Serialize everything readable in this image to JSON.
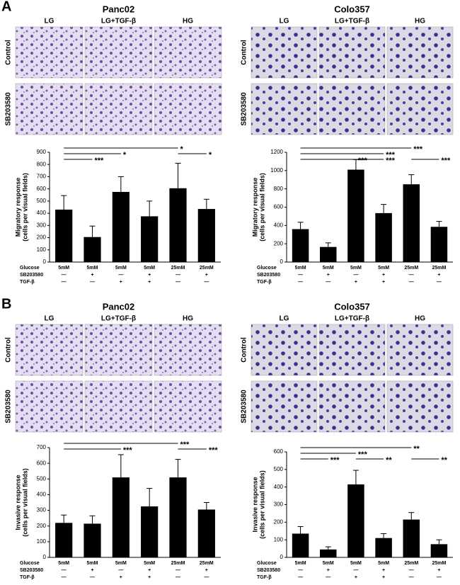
{
  "panel_labels": [
    "A",
    "B"
  ],
  "image_grid": {
    "columns": [
      "LG",
      "LG+TGF-β",
      "HG"
    ],
    "rows": [
      "Control",
      "SB203580"
    ]
  },
  "chart_data": [
    {
      "type": "bar",
      "title": "Panc02",
      "y_label": [
        "Migratory response",
        "(cells per visual fields)"
      ],
      "category_label": "Glucose",
      "categories": [
        "5mM",
        "5mM",
        "5mM",
        "5mM",
        "25mM",
        "25mM"
      ],
      "conditions": [
        {
          "name": "SB203580",
          "values": [
            "—",
            "+",
            "—",
            "+",
            "—",
            "+"
          ]
        },
        {
          "name": "TGF-β",
          "values": [
            "—",
            "—",
            "+",
            "+",
            "—",
            "—"
          ]
        }
      ],
      "values": [
        430,
        205,
        575,
        375,
        605,
        435
      ],
      "errors": [
        115,
        90,
        125,
        125,
        205,
        80
      ],
      "color": "#000000",
      "ylim": [
        0,
        900
      ],
      "yticks": [
        0,
        100,
        200,
        300,
        400,
        500,
        600,
        700,
        800,
        900
      ],
      "annotations": [
        "*",
        "*",
        "***",
        "*"
      ]
    },
    {
      "type": "bar",
      "title": "Colo357",
      "y_label": [
        "Migratory response",
        "(cells per visual fields)"
      ],
      "category_label": "Glucose",
      "categories": [
        "5mM",
        "5mM",
        "5mM",
        "5mM",
        "25mM",
        "25mM"
      ],
      "conditions": [
        {
          "name": "SB203580",
          "values": [
            "—",
            "+",
            "—",
            "+",
            "—",
            "+"
          ]
        },
        {
          "name": "TGF-β",
          "values": [
            "—",
            "—",
            "+",
            "+",
            "—",
            "—"
          ]
        }
      ],
      "values": [
        360,
        165,
        1010,
        535,
        850,
        385
      ],
      "errors": [
        75,
        45,
        110,
        95,
        105,
        60
      ],
      "color": "#000000",
      "ylim": [
        0,
        1200
      ],
      "yticks": [
        0,
        200,
        400,
        600,
        800,
        1000,
        1200
      ],
      "annotations": [
        "***",
        "***",
        "***",
        "***",
        "***"
      ]
    },
    {
      "type": "bar",
      "title": "Panc02",
      "y_label": [
        "Invasive response",
        "(cells per visual fields)"
      ],
      "category_label": "Glucose",
      "categories": [
        "5mM",
        "5mM",
        "5mM",
        "5mM",
        "25mM",
        "25mM"
      ],
      "conditions": [
        {
          "name": "SB203580",
          "values": [
            "—",
            "+",
            "—",
            "+",
            "—",
            "+"
          ]
        },
        {
          "name": "TGF-β",
          "values": [
            "—",
            "—",
            "+",
            "+",
            "—",
            "—"
          ]
        }
      ],
      "values": [
        220,
        215,
        510,
        325,
        510,
        305
      ],
      "errors": [
        50,
        50,
        145,
        115,
        115,
        45
      ],
      "color": "#000000",
      "ylim": [
        0,
        700
      ],
      "yticks": [
        0,
        100,
        200,
        300,
        400,
        500,
        600,
        700
      ],
      "annotations": [
        "***",
        "***",
        "***"
      ]
    },
    {
      "type": "bar",
      "title": "Colo357",
      "y_label": [
        "Invasive response",
        "(cells per visual fields)"
      ],
      "category_label": "Glucose",
      "categories": [
        "5mM",
        "5mM",
        "5mM",
        "5mM",
        "25mM",
        "25mM"
      ],
      "conditions": [
        {
          "name": "SB203580",
          "values": [
            "—",
            "+",
            "—",
            "+",
            "—",
            "+"
          ]
        },
        {
          "name": "TGF-β",
          "values": [
            "—",
            "—",
            "+",
            "+",
            "—",
            "—"
          ]
        }
      ],
      "values": [
        135,
        45,
        415,
        110,
        215,
        75
      ],
      "errors": [
        40,
        15,
        80,
        25,
        40,
        25
      ],
      "color": "#000000",
      "ylim": [
        0,
        600
      ],
      "yticks": [
        0,
        100,
        200,
        300,
        400,
        500,
        600
      ],
      "annotations": [
        "**",
        "***",
        "***",
        "**",
        "**"
      ]
    }
  ]
}
